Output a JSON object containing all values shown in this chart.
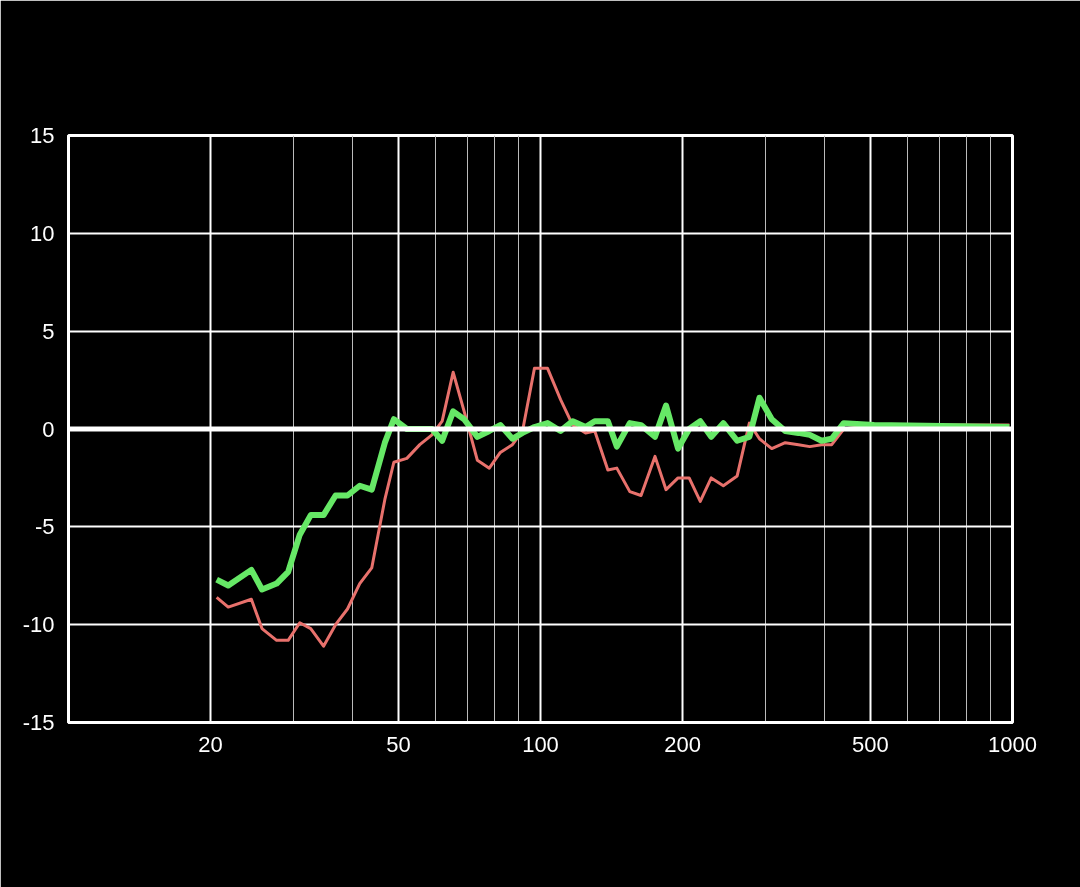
{
  "chart_data": {
    "type": "line",
    "log": "x",
    "grid": true,
    "xlim": [
      10,
      1000
    ],
    "ylim": [
      -15,
      15
    ],
    "xticks": [
      20,
      {
        "value": 30,
        "label": null
      },
      {
        "value": 40,
        "label": null
      },
      50,
      {
        "value": 60,
        "label": null
      },
      {
        "value": 70,
        "label": null
      },
      {
        "value": 80,
        "label": null
      },
      {
        "value": 90,
        "label": null
      },
      100,
      200,
      {
        "value": 300,
        "label": null
      },
      {
        "value": 400,
        "label": null
      },
      500,
      {
        "value": 600,
        "label": null
      },
      {
        "value": 700,
        "label": null
      },
      {
        "value": 800,
        "label": null
      },
      {
        "value": 900,
        "label": null
      },
      1000
    ],
    "yticks": [
      -15,
      -10,
      -5,
      0,
      5,
      10,
      15
    ],
    "ref_lines": [
      {
        "axis": "y",
        "value": 0,
        "color": "#ffffff"
      }
    ],
    "series": [
      {
        "color": "#e8716c",
        "x": [
          20.6,
          21.8,
          24.4,
          25.7,
          27.6,
          29.2,
          30.9,
          32.6,
          34.7,
          36.8,
          39.0,
          41.4,
          43.9,
          46.8,
          48.9,
          52.1,
          55.5,
          58.9,
          61.9,
          65.3,
          68.9,
          73.5,
          77.9,
          82.2,
          87.2,
          91.6,
          97.1,
          103.5,
          110.3,
          117.0,
          124.6,
          130.3,
          138.9,
          145.1,
          154.6,
          163.3,
          174.8,
          184.5,
          195.6,
          206.5,
          218,
          230,
          244,
          261,
          277,
          291,
          309,
          330,
          352,
          372,
          394,
          414,
          439,
          509,
          985
        ],
        "values": [
          -8.6,
          -9.1,
          -8.7,
          -10.2,
          -10.8,
          -10.8,
          -9.9,
          -10.2,
          -11.1,
          -10.0,
          -9.2,
          -7.9,
          -7.1,
          -3.6,
          -1.7,
          -1.5,
          -0.8,
          -0.3,
          0.4,
          2.9,
          0.9,
          -1.6,
          -2.0,
          -1.2,
          -0.8,
          -0.1,
          3.1,
          3.1,
          1.5,
          0.2,
          -0.2,
          -0.1,
          -2.1,
          -2.0,
          -3.2,
          -3.4,
          -1.4,
          -3.1,
          -2.5,
          -2.5,
          -3.7,
          -2.5,
          -2.9,
          -2.4,
          0.3,
          -0.5,
          -1.0,
          -0.7,
          -0.8,
          -0.9,
          -0.8,
          -0.8,
          0.0,
          0.2,
          0.2
        ]
      },
      {
        "color": "#66e866",
        "x": [
          20.6,
          21.8,
          24.4,
          25.7,
          27.6,
          29.2,
          30.9,
          32.6,
          34.7,
          36.8,
          39.0,
          41.4,
          43.9,
          46.8,
          48.9,
          52.1,
          55.5,
          58.9,
          61.9,
          65.3,
          68.9,
          73.5,
          77.9,
          82.2,
          87.2,
          91.6,
          97.1,
          103.5,
          110.3,
          117.0,
          124.6,
          130.3,
          138.9,
          145.1,
          154.6,
          163.3,
          174.8,
          184.5,
          195.6,
          206.5,
          218,
          230,
          244,
          261,
          277,
          291,
          309,
          330,
          352,
          372,
          394,
          414,
          439,
          509,
          985
        ],
        "values": [
          -7.7,
          -8.0,
          -7.2,
          -8.2,
          -7.9,
          -7.3,
          -5.4,
          -4.4,
          -4.4,
          -3.4,
          -3.4,
          -2.9,
          -3.1,
          -0.7,
          0.5,
          0.0,
          0.0,
          0.0,
          -0.6,
          0.9,
          0.5,
          -0.4,
          -0.1,
          0.2,
          -0.5,
          -0.2,
          0.1,
          0.3,
          -0.1,
          0.4,
          0.1,
          0.4,
          0.4,
          -0.9,
          0.3,
          0.2,
          -0.4,
          1.2,
          -1.0,
          0.0,
          0.4,
          -0.4,
          0.3,
          -0.6,
          -0.4,
          1.6,
          0.5,
          -0.1,
          -0.2,
          -0.3,
          -0.6,
          -0.5,
          0.3,
          0.2,
          0.1
        ]
      }
    ]
  }
}
